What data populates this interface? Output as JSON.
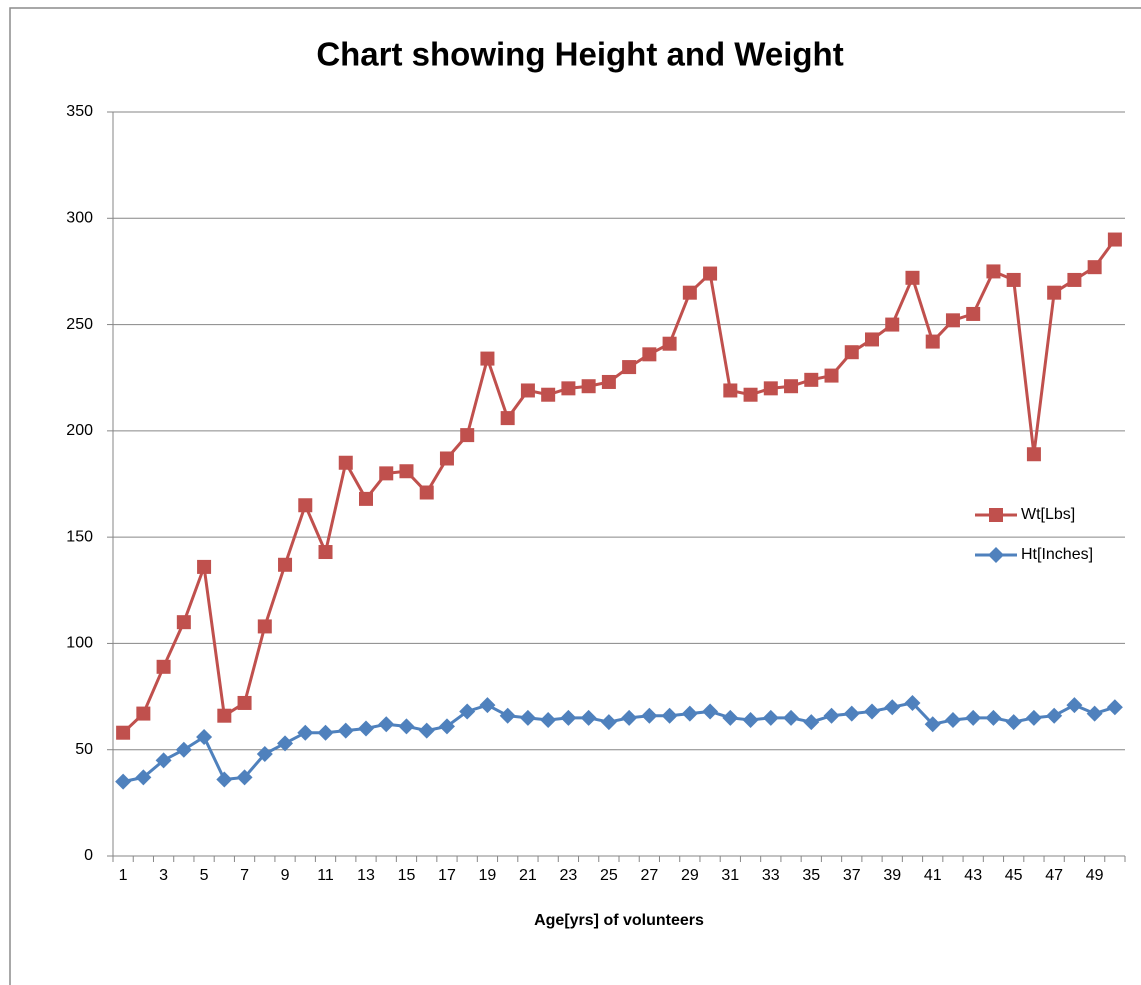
{
  "chart_data": {
    "type": "line",
    "title": "Chart showing Height and Weight",
    "x_label": "Age[yrs] of volunteers",
    "categories": [
      1,
      null,
      3,
      null,
      5,
      null,
      7,
      null,
      9,
      null,
      11,
      null,
      13,
      null,
      15,
      null,
      17,
      null,
      19,
      null,
      21,
      null,
      23,
      null,
      25,
      null,
      27,
      null,
      29,
      null,
      31,
      null,
      33,
      null,
      35,
      null,
      37,
      null,
      39,
      null,
      41,
      null,
      43,
      null,
      45,
      null,
      47,
      null,
      49,
      null
    ],
    "series": [
      {
        "name": "Wt[Lbs]",
        "color": "#c0504d",
        "marker": "square",
        "values": [
          58,
          67,
          89,
          110,
          136,
          66,
          72,
          108,
          137,
          165,
          143,
          185,
          168,
          180,
          181,
          171,
          187,
          198,
          234,
          206,
          219,
          217,
          220,
          221,
          223,
          230,
          236,
          241,
          265,
          274,
          219,
          217,
          220,
          221,
          224,
          226,
          237,
          243,
          250,
          272,
          242,
          252,
          255,
          275,
          271,
          189,
          265,
          271,
          277,
          290
        ]
      },
      {
        "name": "Ht[Inches]",
        "color": "#4f81bd",
        "marker": "diamond",
        "values": [
          35,
          37,
          45,
          50,
          56,
          36,
          37,
          48,
          53,
          58,
          58,
          59,
          60,
          62,
          61,
          59,
          61,
          68,
          71,
          66,
          65,
          64,
          65,
          65,
          63,
          65,
          66,
          66,
          67,
          68,
          65,
          64,
          65,
          65,
          63,
          66,
          67,
          68,
          70,
          72,
          62,
          64,
          65,
          65,
          63,
          65,
          66,
          71,
          67,
          70
        ]
      }
    ],
    "ylim": [
      0,
      350
    ],
    "yticks": [
      0,
      50,
      100,
      150,
      200,
      250,
      300,
      350
    ],
    "grid": true,
    "legend": "right"
  }
}
